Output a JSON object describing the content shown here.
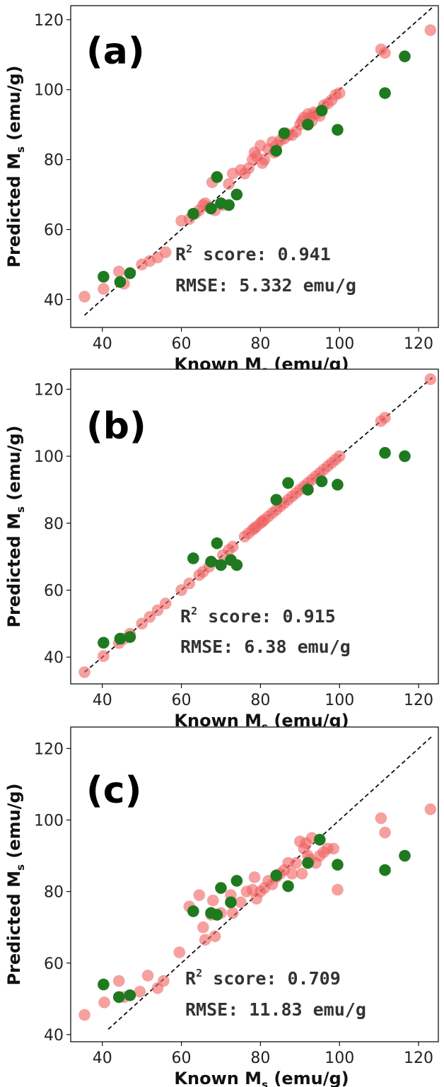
{
  "colors": {
    "train": "#f06060",
    "test": "#1f7a1f",
    "diagonal": "#111111"
  },
  "chart_data": [
    {
      "type": "scatter",
      "panel_label": "(a)",
      "xlabel": {
        "main": "Known M",
        "sub": "s",
        "rest": " (emu/g)"
      },
      "ylabel": {
        "main": "Predicted M",
        "sub": "s",
        "rest": " (emu/g)"
      },
      "xlim": [
        32,
        125
      ],
      "ylim": [
        32,
        124
      ],
      "xticks": [
        40,
        60,
        80,
        100,
        120
      ],
      "yticks": [
        40,
        60,
        80,
        100,
        120
      ],
      "annotation": {
        "r2_prefix": "R",
        "r2_sup": "2",
        "r2_text": " score: 0.941",
        "rmse_text": "RMSE: 5.332 emu/g"
      },
      "series": [
        {
          "name": "train",
          "points": [
            [
              35.5,
              40.8
            ],
            [
              40.3,
              43
            ],
            [
              44.2,
              48
            ],
            [
              45.5,
              44.5
            ],
            [
              47,
              47.5
            ],
            [
              50,
              50
            ],
            [
              52,
              51
            ],
            [
              54,
              52
            ],
            [
              56,
              53.5
            ],
            [
              60,
              62.5
            ],
            [
              62,
              63
            ],
            [
              63.5,
              64.5
            ],
            [
              64.5,
              65.5
            ],
            [
              65.5,
              67
            ],
            [
              66,
              67.5
            ],
            [
              67,
              66.5
            ],
            [
              67.8,
              73.5
            ],
            [
              68.5,
              65.5
            ],
            [
              70.5,
              67
            ],
            [
              72,
              73
            ],
            [
              73,
              76
            ],
            [
              75,
              77
            ],
            [
              76,
              76
            ],
            [
              77,
              77.5
            ],
            [
              78,
              80
            ],
            [
              78.5,
              82
            ],
            [
              79,
              81
            ],
            [
              80,
              84
            ],
            [
              80.5,
              79
            ],
            [
              81,
              80
            ],
            [
              82,
              83
            ],
            [
              83,
              85
            ],
            [
              83.5,
              82
            ],
            [
              84,
              84
            ],
            [
              85,
              85.5
            ],
            [
              86,
              86
            ],
            [
              86.5,
              87.5
            ],
            [
              87,
              87
            ],
            [
              88,
              87
            ],
            [
              89,
              88
            ],
            [
              90,
              90
            ],
            [
              90.5,
              91
            ],
            [
              91,
              92
            ],
            [
              92,
              93
            ],
            [
              92.5,
              92
            ],
            [
              93,
              91
            ],
            [
              93.5,
              93.5
            ],
            [
              94,
              93
            ],
            [
              95,
              92.5
            ],
            [
              95.5,
              94
            ],
            [
              96,
              95.5
            ],
            [
              97,
              96
            ],
            [
              98,
              97
            ],
            [
              99,
              98.5
            ],
            [
              100,
              99
            ],
            [
              110.5,
              111.5
            ],
            [
              111.5,
              110.5
            ],
            [
              123,
              117
            ]
          ]
        },
        {
          "name": "test",
          "points": [
            [
              40.3,
              46.5
            ],
            [
              44.5,
              45
            ],
            [
              47,
              47.5
            ],
            [
              63,
              64.5
            ],
            [
              67.5,
              66
            ],
            [
              69,
              75
            ],
            [
              70,
              67.5
            ],
            [
              72,
              67
            ],
            [
              74,
              70
            ],
            [
              84,
              82.5
            ],
            [
              86,
              87.5
            ],
            [
              92,
              90
            ],
            [
              95.5,
              94
            ],
            [
              99.5,
              88.5
            ],
            [
              111.5,
              99
            ],
            [
              116.5,
              109.5
            ]
          ]
        }
      ]
    },
    {
      "type": "scatter",
      "panel_label": "(b)",
      "xlabel": {
        "main": "Known M",
        "sub": "s",
        "rest": " (emu/g)"
      },
      "ylabel": {
        "main": "Predicted M",
        "sub": "s",
        "rest": " (emu/g)"
      },
      "xlim": [
        32,
        125
      ],
      "ylim": [
        32,
        126
      ],
      "xticks": [
        40,
        60,
        80,
        100,
        120
      ],
      "yticks": [
        40,
        60,
        80,
        100,
        120
      ],
      "annotation": {
        "r2_prefix": "R",
        "r2_sup": "2",
        "r2_text": " score: 0.915",
        "rmse_text": "RMSE: 6.38 emu/g"
      },
      "series": [
        {
          "name": "train",
          "points": [
            [
              35.5,
              35.5
            ],
            [
              40.3,
              40.3
            ],
            [
              44.2,
              44.2
            ],
            [
              45.5,
              45.5
            ],
            [
              47,
              47
            ],
            [
              50,
              50
            ],
            [
              52,
              52
            ],
            [
              54,
              54
            ],
            [
              56,
              56
            ],
            [
              60,
              60
            ],
            [
              62,
              62
            ],
            [
              64.5,
              64.5
            ],
            [
              65.5,
              65.5
            ],
            [
              67,
              67
            ],
            [
              70.5,
              70.5
            ],
            [
              72,
              72
            ],
            [
              73,
              73
            ],
            [
              76,
              76
            ],
            [
              77,
              77
            ],
            [
              78,
              78
            ],
            [
              78.5,
              78.5
            ],
            [
              79,
              79
            ],
            [
              80,
              80
            ],
            [
              80.5,
              80.5
            ],
            [
              81,
              81
            ],
            [
              82,
              82
            ],
            [
              83,
              83
            ],
            [
              84,
              84
            ],
            [
              85,
              85
            ],
            [
              86,
              86
            ],
            [
              87,
              87
            ],
            [
              88,
              88
            ],
            [
              89,
              89
            ],
            [
              90,
              90
            ],
            [
              91,
              91
            ],
            [
              92,
              92
            ],
            [
              93,
              93
            ],
            [
              94,
              94
            ],
            [
              95,
              95
            ],
            [
              96,
              96
            ],
            [
              97,
              97
            ],
            [
              98,
              98
            ],
            [
              99,
              99
            ],
            [
              100,
              100
            ],
            [
              110.5,
              110.5
            ],
            [
              111.5,
              111.5
            ],
            [
              123,
              123
            ]
          ]
        },
        {
          "name": "test",
          "points": [
            [
              40.3,
              44.3
            ],
            [
              44.5,
              45.5
            ],
            [
              47,
              46
            ],
            [
              63,
              69.5
            ],
            [
              67.5,
              68.5
            ],
            [
              69,
              74
            ],
            [
              70,
              67.5
            ],
            [
              72.5,
              69
            ],
            [
              74,
              67.5
            ],
            [
              84,
              87
            ],
            [
              87,
              92
            ],
            [
              92,
              90
            ],
            [
              95.5,
              92.5
            ],
            [
              99.5,
              91.5
            ],
            [
              111.5,
              101
            ],
            [
              116.5,
              100
            ]
          ]
        }
      ]
    },
    {
      "type": "scatter",
      "panel_label": "(c)",
      "xlabel": {
        "main": "Known M",
        "sub": "s",
        "rest": " (emu/g)"
      },
      "ylabel": {
        "main": "Predicted M",
        "sub": "s",
        "rest": " (emu/g)"
      },
      "xlim": [
        32,
        125
      ],
      "ylim": [
        38,
        126
      ],
      "xticks": [
        40,
        60,
        80,
        100,
        120
      ],
      "yticks": [
        40,
        60,
        80,
        100,
        120
      ],
      "annotation": {
        "r2_prefix": "R",
        "r2_sup": "2",
        "r2_text": " score: 0.709",
        "rmse_text": "RMSE: 11.83 emu/g"
      },
      "series": [
        {
          "name": "train",
          "points": [
            [
              35.5,
              45.5
            ],
            [
              40.5,
              49
            ],
            [
              44.2,
              55
            ],
            [
              45.5,
              50.5
            ],
            [
              47,
              51
            ],
            [
              49.5,
              52
            ],
            [
              51.5,
              56.5
            ],
            [
              54,
              53
            ],
            [
              55.5,
              55
            ],
            [
              59.5,
              63
            ],
            [
              62,
              75.8
            ],
            [
              64.5,
              79
            ],
            [
              65.5,
              70
            ],
            [
              66,
              66.5
            ],
            [
              67.5,
              73.5
            ],
            [
              68,
              77.5
            ],
            [
              68.5,
              67.5
            ],
            [
              70,
              74
            ],
            [
              72.5,
              79
            ],
            [
              73,
              74
            ],
            [
              75,
              77
            ],
            [
              76.5,
              80
            ],
            [
              78,
              80.5
            ],
            [
              78.5,
              84
            ],
            [
              79,
              78
            ],
            [
              80,
              80
            ],
            [
              81,
              81
            ],
            [
              82,
              83
            ],
            [
              83,
              82
            ],
            [
              84,
              84
            ],
            [
              85,
              85
            ],
            [
              86,
              86
            ],
            [
              87,
              88
            ],
            [
              88,
              85
            ],
            [
              89,
              88
            ],
            [
              90,
              94
            ],
            [
              90.5,
              85
            ],
            [
              91,
              92
            ],
            [
              91.5,
              93.5
            ],
            [
              92,
              90
            ],
            [
              92.5,
              89
            ],
            [
              93,
              95
            ],
            [
              94,
              88
            ],
            [
              95,
              90
            ],
            [
              96,
              91
            ],
            [
              97,
              92
            ],
            [
              98.5,
              92
            ],
            [
              99.5,
              80.5
            ],
            [
              110.5,
              100.5
            ],
            [
              111.5,
              96.5
            ],
            [
              123,
              103
            ]
          ]
        },
        {
          "name": "test",
          "points": [
            [
              40.3,
              54
            ],
            [
              44.2,
              50.5
            ],
            [
              47,
              51
            ],
            [
              63,
              74.5
            ],
            [
              67.5,
              74
            ],
            [
              69,
              73.5
            ],
            [
              70,
              81
            ],
            [
              72.5,
              77
            ],
            [
              74,
              83
            ],
            [
              84,
              84.5
            ],
            [
              87,
              81.5
            ],
            [
              92,
              88
            ],
            [
              95,
              94.5
            ],
            [
              99.5,
              87.5
            ],
            [
              111.5,
              86
            ],
            [
              116.5,
              90
            ]
          ]
        }
      ]
    }
  ]
}
